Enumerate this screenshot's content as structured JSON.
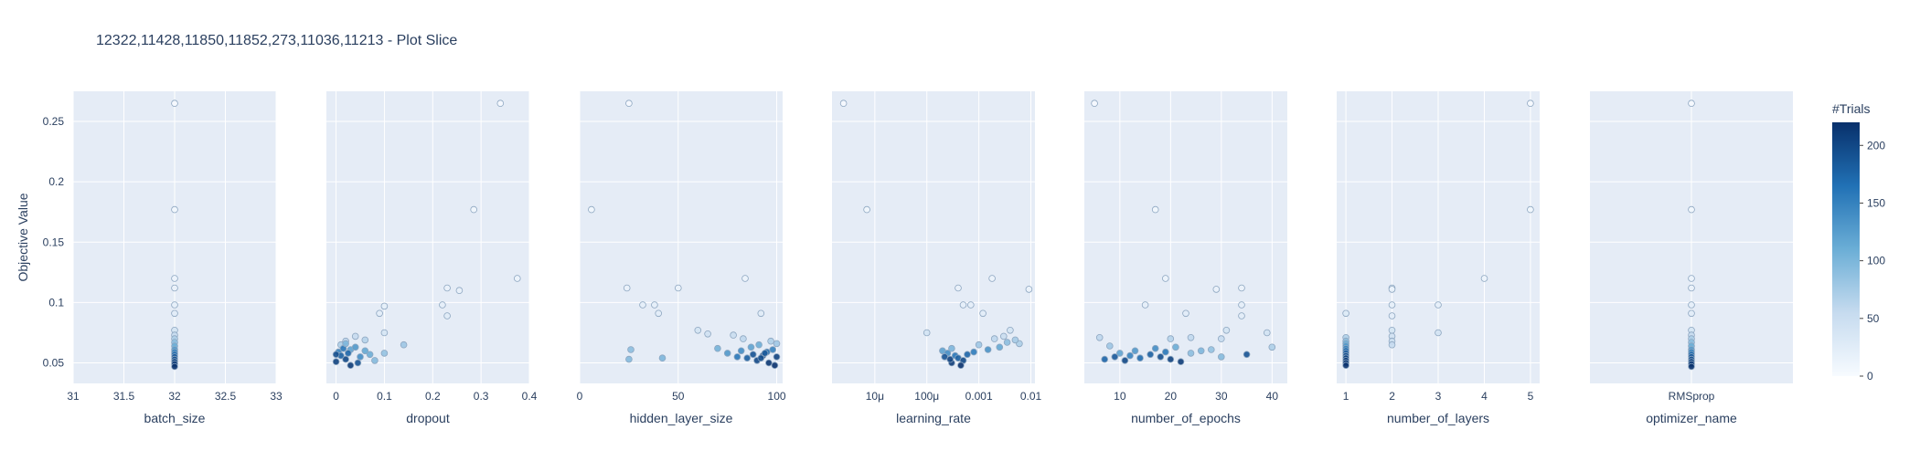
{
  "chart_data": {
    "type": "scatter",
    "title": "12322,11428,11850,11852,273,11036,11213 - Plot Slice",
    "ylabel": "Objective Value",
    "ylim": [
      0.033,
      0.275
    ],
    "yticks": [
      0.05,
      0.1,
      0.15,
      0.2,
      0.25
    ],
    "ytick_labels": [
      "0.05",
      "0.1",
      "0.15",
      "0.2",
      "0.25"
    ],
    "grid": true,
    "colorbar": {
      "title": "#Trials",
      "range": [
        0,
        220
      ],
      "ticks": [
        0,
        50,
        100,
        150,
        200
      ],
      "tick_labels": [
        "0",
        "50",
        "100",
        "150",
        "200"
      ],
      "colorscale": [
        "#f7fbff",
        "#c6dbef",
        "#6baed6",
        "#2171b5",
        "#08306b"
      ]
    },
    "panels": [
      {
        "xlabel": "batch_size",
        "scale": "linear",
        "xlim": [
          31,
          33
        ],
        "xticks": [
          31,
          31.5,
          32,
          32.5,
          33
        ],
        "xtick_labels": [
          "31",
          "31.5",
          "32",
          "32.5",
          "33"
        ],
        "points": [
          [
            32,
            0.265,
            1
          ],
          [
            32,
            0.177,
            7
          ],
          [
            32,
            0.12,
            12
          ],
          [
            32,
            0.112,
            15
          ],
          [
            32,
            0.098,
            20
          ],
          [
            32,
            0.091,
            25
          ],
          [
            32,
            0.077,
            40
          ],
          [
            32,
            0.073,
            55
          ],
          [
            32,
            0.07,
            70
          ],
          [
            32,
            0.067,
            90
          ],
          [
            32,
            0.064,
            110
          ],
          [
            32,
            0.061,
            130
          ],
          [
            32,
            0.059,
            150
          ],
          [
            32,
            0.057,
            170
          ],
          [
            32,
            0.055,
            185
          ],
          [
            32,
            0.053,
            195
          ],
          [
            32,
            0.051,
            205
          ],
          [
            32,
            0.049,
            212
          ],
          [
            32,
            0.047,
            218
          ]
        ]
      },
      {
        "xlabel": "dropout",
        "scale": "linear",
        "xlim": [
          -0.02,
          0.4
        ],
        "xticks": [
          0,
          0.1,
          0.2,
          0.3,
          0.4
        ],
        "xtick_labels": [
          "0",
          "0.1",
          "0.2",
          "0.3",
          "0.4"
        ],
        "points": [
          [
            0.34,
            0.265,
            1
          ],
          [
            0.285,
            0.177,
            7
          ],
          [
            0.375,
            0.12,
            12
          ],
          [
            0.23,
            0.112,
            15
          ],
          [
            0.255,
            0.11,
            17
          ],
          [
            0.22,
            0.098,
            20
          ],
          [
            0.23,
            0.089,
            26
          ],
          [
            0.09,
            0.091,
            24
          ],
          [
            0.1,
            0.097,
            21
          ],
          [
            0.1,
            0.075,
            38
          ],
          [
            0.02,
            0.068,
            60
          ],
          [
            0.01,
            0.065,
            70
          ],
          [
            0.04,
            0.072,
            55
          ],
          [
            0.06,
            0.069,
            65
          ],
          [
            0.03,
            0.061,
            120
          ],
          [
            0.005,
            0.059,
            150
          ],
          [
            0.01,
            0.056,
            180
          ],
          [
            0.02,
            0.053,
            200
          ],
          [
            0.0,
            0.051,
            205
          ],
          [
            0.03,
            0.048,
            210
          ],
          [
            0.05,
            0.055,
            140
          ],
          [
            0.07,
            0.057,
            110
          ],
          [
            0.08,
            0.052,
            95
          ],
          [
            0.04,
            0.063,
            130
          ],
          [
            0.015,
            0.062,
            160
          ],
          [
            0.025,
            0.058,
            175
          ],
          [
            0.045,
            0.05,
            190
          ],
          [
            0.06,
            0.06,
            115
          ],
          [
            0.1,
            0.058,
            85
          ],
          [
            0.14,
            0.065,
            80
          ],
          [
            0.0,
            0.057,
            195
          ],
          [
            0.02,
            0.066,
            100
          ]
        ]
      },
      {
        "xlabel": "hidden_layer_size",
        "scale": "linear",
        "xlim": [
          0,
          103
        ],
        "xticks": [
          0,
          50,
          100
        ],
        "xtick_labels": [
          "0",
          "50",
          "100"
        ],
        "points": [
          [
            25,
            0.265,
            1
          ],
          [
            6,
            0.177,
            7
          ],
          [
            84,
            0.12,
            12
          ],
          [
            24,
            0.112,
            15
          ],
          [
            50,
            0.112,
            14
          ],
          [
            32,
            0.098,
            20
          ],
          [
            38,
            0.098,
            19
          ],
          [
            40,
            0.091,
            24
          ],
          [
            92,
            0.091,
            26
          ],
          [
            60,
            0.077,
            40
          ],
          [
            65,
            0.074,
            45
          ],
          [
            78,
            0.073,
            50
          ],
          [
            83,
            0.07,
            60
          ],
          [
            97,
            0.068,
            70
          ],
          [
            100,
            0.066,
            80
          ],
          [
            26,
            0.061,
            90
          ],
          [
            25,
            0.053,
            95
          ],
          [
            42,
            0.054,
            100
          ],
          [
            70,
            0.062,
            105
          ],
          [
            75,
            0.058,
            130
          ],
          [
            80,
            0.055,
            160
          ],
          [
            85,
            0.054,
            180
          ],
          [
            88,
            0.057,
            190
          ],
          [
            90,
            0.052,
            200
          ],
          [
            93,
            0.056,
            210
          ],
          [
            95,
            0.059,
            170
          ],
          [
            98,
            0.061,
            150
          ],
          [
            100,
            0.055,
            205
          ],
          [
            82,
            0.06,
            140
          ],
          [
            87,
            0.063,
            120
          ],
          [
            91,
            0.065,
            110
          ],
          [
            96,
            0.05,
            215
          ],
          [
            99,
            0.048,
            218
          ],
          [
            92,
            0.054,
            195
          ],
          [
            94,
            0.058,
            185
          ]
        ]
      },
      {
        "xlabel": "learning_rate",
        "scale": "log",
        "xlim": [
          1.5e-06,
          0.012
        ],
        "xticks": [
          1e-05,
          0.0001,
          0.001,
          0.01
        ],
        "xtick_labels": [
          "10μ",
          "100μ",
          "0.001",
          "0.01"
        ],
        "points": [
          [
            2.5e-06,
            0.265,
            1
          ],
          [
            7e-06,
            0.177,
            7
          ],
          [
            0.0018,
            0.12,
            12
          ],
          [
            0.0004,
            0.112,
            15
          ],
          [
            0.0092,
            0.111,
            14
          ],
          [
            0.0005,
            0.098,
            20
          ],
          [
            0.0007,
            0.098,
            19
          ],
          [
            0.0012,
            0.091,
            24
          ],
          [
            0.004,
            0.077,
            40
          ],
          [
            0.0001,
            0.075,
            42
          ],
          [
            0.003,
            0.072,
            50
          ],
          [
            0.002,
            0.07,
            60
          ],
          [
            0.006,
            0.066,
            70
          ],
          [
            0.001,
            0.065,
            80
          ],
          [
            0.0003,
            0.062,
            100
          ],
          [
            0.0002,
            0.06,
            120
          ],
          [
            0.00025,
            0.058,
            140
          ],
          [
            0.00035,
            0.056,
            160
          ],
          [
            0.0004,
            0.054,
            180
          ],
          [
            0.0005,
            0.052,
            200
          ],
          [
            0.0003,
            0.05,
            210
          ],
          [
            0.00045,
            0.048,
            218
          ],
          [
            0.0006,
            0.057,
            175
          ],
          [
            0.0008,
            0.059,
            155
          ],
          [
            0.0015,
            0.061,
            135
          ],
          [
            0.0025,
            0.063,
            115
          ],
          [
            0.0035,
            0.067,
            90
          ],
          [
            0.005,
            0.069,
            75
          ],
          [
            0.00022,
            0.055,
            190
          ],
          [
            0.00028,
            0.053,
            205
          ]
        ]
      },
      {
        "xlabel": "number_of_epochs",
        "scale": "linear",
        "xlim": [
          3,
          43
        ],
        "xticks": [
          10,
          20,
          30,
          40
        ],
        "xtick_labels": [
          "10",
          "20",
          "30",
          "40"
        ],
        "points": [
          [
            5,
            0.265,
            1
          ],
          [
            17,
            0.177,
            7
          ],
          [
            19,
            0.12,
            12
          ],
          [
            29,
            0.111,
            15
          ],
          [
            34,
            0.112,
            14
          ],
          [
            15,
            0.098,
            20
          ],
          [
            34,
            0.098,
            19
          ],
          [
            34,
            0.089,
            24
          ],
          [
            23,
            0.091,
            25
          ],
          [
            31,
            0.077,
            40
          ],
          [
            39,
            0.075,
            42
          ],
          [
            6,
            0.071,
            60
          ],
          [
            30,
            0.07,
            55
          ],
          [
            20,
            0.07,
            65
          ],
          [
            24,
            0.071,
            58
          ],
          [
            40,
            0.063,
            70
          ],
          [
            8,
            0.064,
            80
          ],
          [
            10,
            0.058,
            120
          ],
          [
            12,
            0.056,
            150
          ],
          [
            14,
            0.054,
            170
          ],
          [
            16,
            0.057,
            180
          ],
          [
            18,
            0.055,
            195
          ],
          [
            20,
            0.053,
            205
          ],
          [
            22,
            0.051,
            210
          ],
          [
            11,
            0.052,
            200
          ],
          [
            13,
            0.06,
            130
          ],
          [
            17,
            0.062,
            140
          ],
          [
            19,
            0.059,
            160
          ],
          [
            21,
            0.063,
            110
          ],
          [
            24,
            0.058,
            90
          ],
          [
            26,
            0.06,
            100
          ],
          [
            28,
            0.061,
            85
          ],
          [
            30,
            0.055,
            95
          ],
          [
            35,
            0.057,
            190
          ],
          [
            9,
            0.055,
            185
          ],
          [
            7,
            0.053,
            175
          ]
        ]
      },
      {
        "xlabel": "number_of_layers",
        "scale": "linear",
        "xlim": [
          0.8,
          5.2
        ],
        "xticks": [
          1,
          2,
          3,
          4,
          5
        ],
        "xtick_labels": [
          "1",
          "2",
          "3",
          "4",
          "5"
        ],
        "points": [
          [
            5,
            0.265,
            1
          ],
          [
            5,
            0.177,
            7
          ],
          [
            4,
            0.12,
            12
          ],
          [
            2,
            0.112,
            15
          ],
          [
            2,
            0.111,
            14
          ],
          [
            2,
            0.098,
            20
          ],
          [
            3,
            0.098,
            19
          ],
          [
            2,
            0.089,
            25
          ],
          [
            1,
            0.091,
            30
          ],
          [
            2,
            0.077,
            40
          ],
          [
            3,
            0.075,
            42
          ],
          [
            2,
            0.072,
            45
          ],
          [
            2,
            0.068,
            50
          ],
          [
            2,
            0.065,
            55
          ],
          [
            1,
            0.071,
            70
          ],
          [
            1,
            0.068,
            90
          ],
          [
            1,
            0.066,
            110
          ],
          [
            1,
            0.064,
            130
          ],
          [
            1,
            0.062,
            150
          ],
          [
            1,
            0.06,
            170
          ],
          [
            1,
            0.058,
            185
          ],
          [
            1,
            0.056,
            195
          ],
          [
            1,
            0.054,
            205
          ],
          [
            1,
            0.052,
            210
          ],
          [
            1,
            0.05,
            215
          ],
          [
            1,
            0.048,
            218
          ]
        ]
      },
      {
        "xlabel": "optimizer_name",
        "scale": "category",
        "categories": [
          "RMSprop"
        ],
        "xtick_labels": [
          "RMSprop"
        ],
        "points": [
          [
            "RMSprop",
            0.265,
            1
          ],
          [
            "RMSprop",
            0.177,
            7
          ],
          [
            "RMSprop",
            0.12,
            12
          ],
          [
            "RMSprop",
            0.112,
            15
          ],
          [
            "RMSprop",
            0.098,
            20
          ],
          [
            "RMSprop",
            0.091,
            25
          ],
          [
            "RMSprop",
            0.077,
            40
          ],
          [
            "RMSprop",
            0.073,
            55
          ],
          [
            "RMSprop",
            0.07,
            70
          ],
          [
            "RMSprop",
            0.067,
            90
          ],
          [
            "RMSprop",
            0.064,
            110
          ],
          [
            "RMSprop",
            0.061,
            130
          ],
          [
            "RMSprop",
            0.059,
            150
          ],
          [
            "RMSprop",
            0.057,
            170
          ],
          [
            "RMSprop",
            0.055,
            185
          ],
          [
            "RMSprop",
            0.053,
            195
          ],
          [
            "RMSprop",
            0.051,
            205
          ],
          [
            "RMSprop",
            0.049,
            212
          ],
          [
            "RMSprop",
            0.047,
            218
          ]
        ]
      }
    ]
  }
}
